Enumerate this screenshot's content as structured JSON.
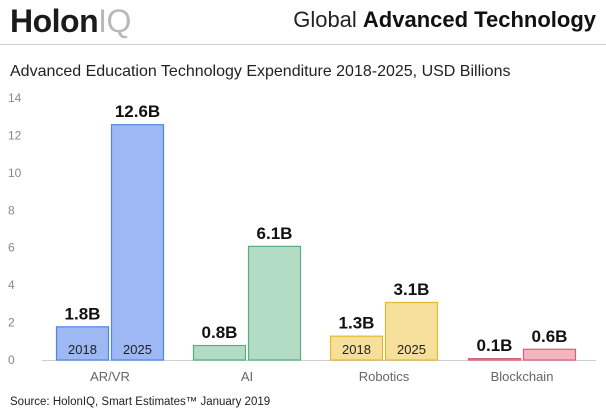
{
  "header": {
    "logo_bold": "Holon",
    "logo_light": "IQ",
    "title_normal": "Global",
    "title_strong": "Advanced Technology"
  },
  "source": "Source: HolonIQ, Smart Estimates™ January 2019",
  "colors": {
    "ar_vr": "#9db8f2",
    "ar_vr_border": "#4f86e8",
    "ai": "#b3dcc4",
    "ai_border": "#58ad82",
    "robotics": "#f6df9a",
    "robotics_border": "#e3b92e",
    "blockchain": "#f3b6c0",
    "blockchain_border": "#d95f77"
  },
  "chart_data": {
    "type": "bar",
    "title": "Advanced Education Technology Expenditure 2018-2025, USD Billions",
    "xlabel": "",
    "ylabel": "",
    "ylim": [
      0,
      14
    ],
    "yticks": [
      0,
      2,
      4,
      6,
      8,
      10,
      12,
      14
    ],
    "grid": false,
    "categories": [
      "AR/VR",
      "AI",
      "Robotics",
      "Blockchain"
    ],
    "series": [
      {
        "name": "2018",
        "values": [
          1.8,
          0.8,
          1.3,
          0.1
        ],
        "labels": [
          "1.8B",
          "0.8B",
          "1.3B",
          "0.1B"
        ],
        "inbar_labels": [
          "2018",
          "",
          "2018",
          ""
        ]
      },
      {
        "name": "2025",
        "values": [
          12.6,
          6.1,
          3.1,
          0.6
        ],
        "labels": [
          "12.6B",
          "6.1B",
          "3.1B",
          "0.6B"
        ],
        "inbar_labels": [
          "2025",
          "",
          "2025",
          ""
        ]
      }
    ]
  }
}
